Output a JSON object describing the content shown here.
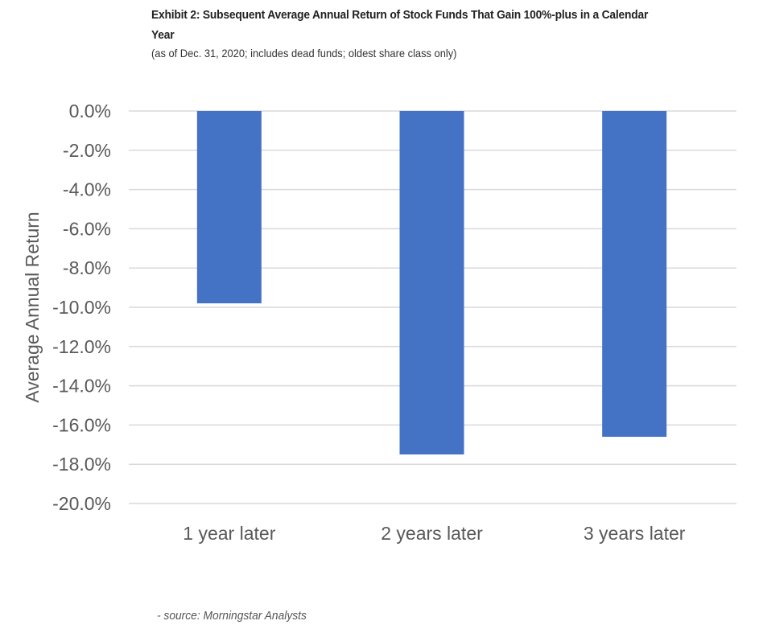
{
  "header": {
    "title": "Exhibit 2: Subsequent Average Annual Return of Stock Funds That Gain 100%-plus in a Calendar Year",
    "subtitle": "(as of Dec. 31, 2020; includes dead funds; oldest share class only)"
  },
  "footer": {
    "source": " - source: Morningstar Analysts"
  },
  "chart_data": {
    "type": "bar",
    "title": "Exhibit 2: Subsequent Average Annual Return of Stock Funds That Gain 100%-plus in a Calendar Year",
    "xlabel": "",
    "ylabel": "Average Annual Return",
    "categories": [
      "1 year later",
      "2 years later",
      "3 years later"
    ],
    "values": [
      -9.8,
      -17.5,
      -16.6
    ],
    "ylim": [
      -20,
      0
    ],
    "yticks": [
      0,
      -2,
      -4,
      -6,
      -8,
      -10,
      -12,
      -14,
      -16,
      -18,
      -20
    ],
    "ytick_labels": [
      "0.0%",
      "-2.0%",
      "-4.0%",
      "-6.0%",
      "-8.0%",
      "-10.0%",
      "-12.0%",
      "-14.0%",
      "-16.0%",
      "-18.0%",
      "-20.0%"
    ],
    "grid": true,
    "legend": "none",
    "colors": {
      "bar": "#4472C4",
      "grid": "#D9D9D9",
      "text": "#595959"
    }
  }
}
